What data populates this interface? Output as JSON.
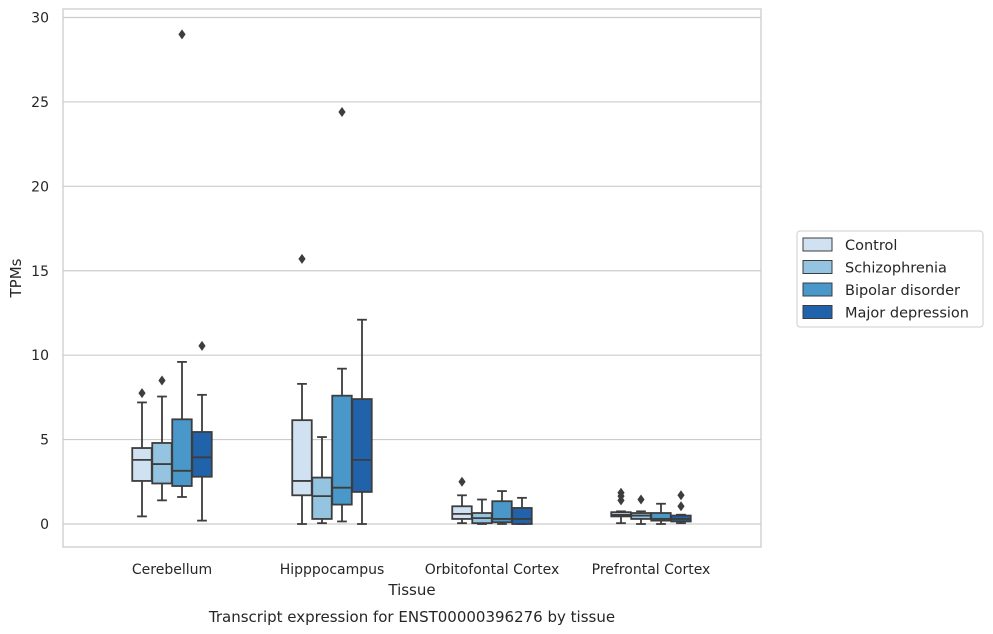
{
  "chart_data": {
    "type": "box",
    "title": "Transcript expression for ENST00000396276 by tissue",
    "xlabel": "Tissue",
    "ylabel": "TPMs",
    "ylim": [
      -1.4,
      30.5
    ],
    "yticks": [
      0,
      5,
      10,
      15,
      20,
      25,
      30
    ],
    "grid": "horizontal",
    "legend_position": "right",
    "categories": [
      "Cerebellum",
      "Hipppocampus",
      "Orbitofontal Cortex",
      "Prefrontal Cortex"
    ],
    "series": [
      {
        "name": "Control",
        "color": "#d0e1f2",
        "boxes": [
          {
            "whislo": 0.45,
            "q1": 2.55,
            "med": 3.8,
            "q3": 4.5,
            "whishi": 7.2,
            "fliers": [
              7.75
            ]
          },
          {
            "whislo": 0.0,
            "q1": 1.7,
            "med": 2.55,
            "q3": 6.15,
            "whishi": 8.3,
            "fliers": [
              15.7
            ]
          },
          {
            "whislo": 0.05,
            "q1": 0.3,
            "med": 0.6,
            "q3": 1.05,
            "whishi": 1.7,
            "fliers": [
              2.5
            ]
          },
          {
            "whislo": 0.05,
            "q1": 0.45,
            "med": 0.55,
            "q3": 0.7,
            "whishi": 0.75,
            "fliers": [
              1.4,
              1.65,
              1.85
            ]
          }
        ]
      },
      {
        "name": "Schizophrenia",
        "color": "#94c4df",
        "boxes": [
          {
            "whislo": 1.4,
            "q1": 2.4,
            "med": 3.55,
            "q3": 4.8,
            "whishi": 7.55,
            "fliers": [
              8.5
            ]
          },
          {
            "whislo": 0.05,
            "q1": 0.3,
            "med": 1.65,
            "q3": 2.75,
            "whishi": 5.15,
            "fliers": []
          },
          {
            "whislo": 0.0,
            "q1": 0.05,
            "med": 0.35,
            "q3": 0.65,
            "whishi": 1.45,
            "fliers": []
          },
          {
            "whislo": 0.0,
            "q1": 0.3,
            "med": 0.5,
            "q3": 0.65,
            "whishi": 0.75,
            "fliers": [
              1.45
            ]
          }
        ]
      },
      {
        "name": "Bipolar disorder",
        "color": "#4a98c9",
        "boxes": [
          {
            "whislo": 1.6,
            "q1": 2.25,
            "med": 3.15,
            "q3": 6.2,
            "whishi": 9.6,
            "fliers": [
              29.0
            ]
          },
          {
            "whislo": 0.15,
            "q1": 1.15,
            "med": 2.15,
            "q3": 7.6,
            "whishi": 9.2,
            "fliers": [
              24.4
            ]
          },
          {
            "whislo": 0.0,
            "q1": 0.1,
            "med": 0.3,
            "q3": 1.35,
            "whishi": 1.95,
            "fliers": []
          },
          {
            "whislo": 0.0,
            "q1": 0.2,
            "med": 0.3,
            "q3": 0.65,
            "whishi": 1.2,
            "fliers": []
          }
        ]
      },
      {
        "name": "Major depression",
        "color": "#2163aa",
        "boxes": [
          {
            "whislo": 0.2,
            "q1": 2.8,
            "med": 3.95,
            "q3": 5.45,
            "whishi": 7.65,
            "fliers": [
              10.55
            ]
          },
          {
            "whislo": 0.0,
            "q1": 1.9,
            "med": 3.8,
            "q3": 7.4,
            "whishi": 12.1,
            "fliers": []
          },
          {
            "whislo": 0.0,
            "q1": 0.0,
            "med": 0.3,
            "q3": 0.95,
            "whishi": 1.55,
            "fliers": []
          },
          {
            "whislo": 0.05,
            "q1": 0.15,
            "med": 0.3,
            "q3": 0.5,
            "whishi": 0.55,
            "fliers": [
              1.05,
              1.7
            ]
          }
        ]
      }
    ]
  }
}
